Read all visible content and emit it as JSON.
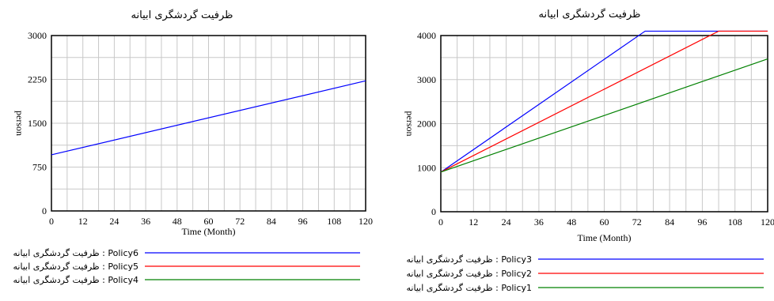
{
  "chart_data": [
    {
      "type": "line",
      "title": "ظرفیت گردشگری ابیانه",
      "xlabel": "Time (Month)",
      "ylabel": "person",
      "xlim": [
        0,
        120
      ],
      "ylim": [
        0,
        3000
      ],
      "x_ticks": [
        0,
        12,
        24,
        36,
        48,
        60,
        72,
        84,
        96,
        108,
        120
      ],
      "y_ticks": [
        0,
        750,
        1500,
        2250,
        3000
      ],
      "grid": true,
      "legend_position": "bottom",
      "series": [
        {
          "name": "ظرفیت گردشگری ابیانه : Policy6",
          "color": "#0000ff",
          "x": [
            0,
            120
          ],
          "y": [
            960,
            2225
          ]
        },
        {
          "name": "ظرفیت گردشگری ابیانه : Policy5",
          "color": "#ff0000",
          "x": [],
          "y": []
        },
        {
          "name": "ظرفیت گردشگری ابیانه : Policy4",
          "color": "#008000",
          "x": [],
          "y": []
        }
      ]
    },
    {
      "type": "line",
      "title": "ظرفیت گردشگری ابیانه",
      "xlabel": "Time (Month)",
      "ylabel": "person",
      "xlim": [
        0,
        120
      ],
      "ylim": [
        0,
        4000
      ],
      "x_ticks": [
        0,
        12,
        24,
        36,
        48,
        60,
        72,
        84,
        96,
        108,
        120
      ],
      "y_ticks": [
        0,
        1000,
        2000,
        3000,
        4000
      ],
      "grid": true,
      "legend_position": "bottom",
      "series": [
        {
          "name": "ظرفیت گردشگری ابیانه : Policy3",
          "color": "#0000ff",
          "x": [
            0,
            75,
            120
          ],
          "y": [
            900,
            4100,
            4100
          ]
        },
        {
          "name": "ظرفیت گردشگری ابیانه : Policy2",
          "color": "#ff0000",
          "x": [
            0,
            102,
            120
          ],
          "y": [
            900,
            4100,
            4100
          ]
        },
        {
          "name": "ظرفیت گردشگری ابیانه : Policy1",
          "color": "#008000",
          "x": [
            0,
            120
          ],
          "y": [
            900,
            3470
          ]
        }
      ]
    }
  ]
}
